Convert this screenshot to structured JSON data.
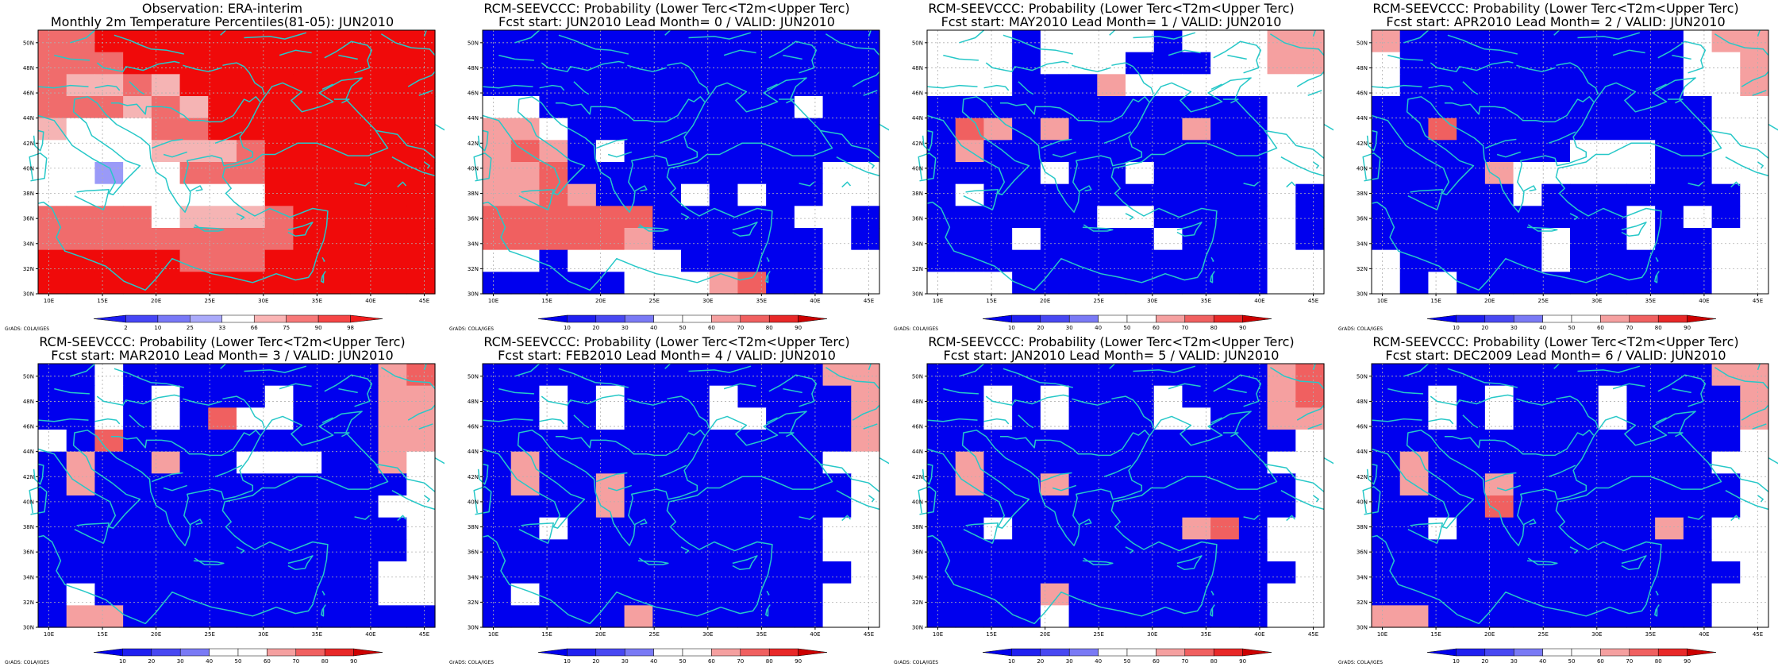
{
  "grads_credit": "GrADS: COLA/IGES",
  "map_axes": {
    "lon_min": 9,
    "lon_max": 46,
    "lat_min": 30,
    "lat_max": 51,
    "lon_ticks": [
      "10E",
      "15E",
      "20E",
      "25E",
      "30E",
      "35E",
      "40E",
      "45E"
    ],
    "lat_ticks": [
      "30N",
      "32N",
      "34N",
      "36N",
      "38N",
      "40N",
      "42N",
      "44N",
      "46N",
      "48N",
      "50N"
    ]
  },
  "colorbars": {
    "obs": {
      "labels": [
        "2",
        "10",
        "25",
        "33",
        "66",
        "75",
        "90",
        "98"
      ],
      "colors": [
        "#1c1cf0",
        "#4646f5",
        "#7878f7",
        "#aaaafa",
        "#ffffff",
        "#fab4b4",
        "#f77878",
        "#f54646",
        "#f01c1c"
      ]
    },
    "prob": {
      "labels": [
        "10",
        "20",
        "30",
        "40",
        "50",
        "60",
        "70",
        "80",
        "90"
      ],
      "colors": [
        "#0000ee",
        "#2020f0",
        "#4848f2",
        "#7a7af5",
        "#ffffff",
        "#ffffff",
        "#f5a0a0",
        "#f06060",
        "#e82828",
        "#cc0000"
      ]
    }
  },
  "panels": [
    {
      "id": "obs",
      "title_line1": "Observation: ERA-interim",
      "title_line2": "Monthly 2m Temperature Percentiles(81-05): JUN2010",
      "colorbar": "obs",
      "grid": [
        "rrRRRRRRRRRRRR",
        "rrrRRRRRRRRRRR",
        "rpprpRRRRRRRRR",
        "rrrprpRRRRRRRR",
        "pwwwrrRRRRRRRR",
        "wwwwppprRRRRRR",
        "wwbwwrrrRRRRRR",
        "wwwwwwwwRRRRRR",
        "rrrrwppprRRRRR",
        "rrrrrrrrrRRRRR",
        "RRRRRrrrRRRRRR",
        "RRRRRRRRRRRRRR"
      ]
    },
    {
      "id": "lead0",
      "title_line1": "RCM-SEEVCCC: Probability (Lower Terc<T2m<Upper Terc)",
      "title_line2": "Fcst start: JUN2010  Lead Month= 0 / VALID: JUN2010",
      "colorbar": "prob",
      "grid": [
        "BBBBBBBBBBBBBB",
        "BBBBBBBBBBBBBB",
        "BBBBBBBBBBBBBB",
        "wwBBBBBBBBBwBB",
        "ppwBBBBBBBBBBB",
        "prpBwBBBBBBBBB",
        "pprBBBBBBBBBww",
        "pprpBBBwBwBBww",
        "rrrrrrBBBBBwwB",
        "rrrrrpBBBBBBwB",
        "wwBwwwwBBBBBww",
        "BBBBBwwwprBBww"
      ]
    },
    {
      "id": "lead1",
      "title_line1": "RCM-SEEVCCC: Probability (Lower Terc<T2m<Upper Terc)",
      "title_line2": "Fcst start: MAY2010  Lead Month= 1 / VALID: JUN2010",
      "colorbar": "prob",
      "grid": [
        "wwwBwwwwBwwwpp",
        "wwwBwwwBBBwwpp",
        "wwwBBBpwwwwwww",
        "BBBBBBBBBBBBww",
        "BrpBpBBBBpBBww",
        "BpBBBBBBBBBBww",
        "BBBBwBBwBBBBww",
        "BwBBBBBBBBBBwB",
        "BBBBBBwwBBBBwB",
        "BBBwBBBBwBBBwB",
        "BBBBBBBBBBBBww",
        "wwwBBBBBBBBBww"
      ]
    },
    {
      "id": "lead2",
      "title_line1": "RCM-SEEVCCC: Probability (Lower Terc<T2m<Upper Terc)",
      "title_line2": "Fcst start: APR2010  Lead Month= 2 / VALID: JUN2010",
      "colorbar": "prob",
      "grid": [
        "pBBBBBBBBBBwpp",
        "wBBBBBBBBBBwwp",
        "wBBBBBBBBBBwwp",
        "BBBBBBBBBBBBww",
        "BBrBBBBBBBBBww",
        "BBBBBBBwwwBBww",
        "BBBBpwwwwwBBww",
        "BBBBBwBBBBBBBw",
        "BBBBBBBBBwBwBw",
        "BBBBBBwBBwBBww",
        "wBBBBBwBBBBBww",
        "wBwBBBBBBBBBww"
      ]
    },
    {
      "id": "lead3",
      "title_line1": "RCM-SEEVCCC: Probability (Lower Terc<T2m<Upper Terc)",
      "title_line2": "Fcst start: MAR2010  Lead Month= 3 / VALID: JUN2010",
      "colorbar": "prob",
      "grid": [
        "BBwBBBBBBBBBpr",
        "BBwBwBBBwBBBpp",
        "BBwBwBrwwBBBpp",
        "wBrBBBBBBBBBpp",
        "BpBBpBBwwwBBpw",
        "BpBBBBBBBBBBBw",
        "BBBBBBBBBBBBww",
        "BBBBBBBBBBBBBw",
        "BBBBBBBBBBBBBw",
        "BBBBBBBBBBBBww",
        "BwBBBBBBBBBBww",
        "BppBBBBBBBBBBB"
      ]
    },
    {
      "id": "lead4",
      "title_line1": "RCM-SEEVCCC: Probability (Lower Terc<T2m<Upper Terc)",
      "title_line2": "Fcst start: FEB2010  Lead Month= 4 / VALID: JUN2010",
      "colorbar": "prob",
      "grid": [
        "BBBBBBBBBBBBpp",
        "BBwBwBBBwBBBBp",
        "BBwBwBBBwwBBBp",
        "BBBBBBBBBBBBBp",
        "BpBBBBBBBBBBww",
        "BpBBpBBBBBBBBw",
        "BBBBpBBBBBBBBw",
        "BBwBBBBBBBBBww",
        "BBBBBBBBBBBBww",
        "BBBBBBBBBBBBBw",
        "BwBBBBBBBBBBww",
        "BBBBBpBBBBBBww"
      ]
    },
    {
      "id": "lead5",
      "title_line1": "RCM-SEEVCCC: Probability (Lower Terc<T2m<Upper Terc)",
      "title_line2": "Fcst start: JAN2010  Lead Month= 5 / VALID: JUN2010",
      "colorbar": "prob",
      "grid": [
        "BBBBBBBBBBBBpr",
        "BBwBwBBBwBBBpr",
        "BBwBwBBBwwBBpp",
        "BBBBBBBBBBBBBw",
        "BpBBBBBBBBBBww",
        "BpBBpBBBBBBBBw",
        "BBBBBBBBBBBBBw",
        "BBwBBBBBBprBww",
        "BBBBBBBBBBBBww",
        "BBBBBBBBBBBBBw",
        "BBBBpBBBBBBBww",
        "BBBBwBBBBBBBww"
      ]
    },
    {
      "id": "lead6",
      "title_line1": "RCM-SEEVCCC: Probability (Lower Terc<T2m<Upper Terc)",
      "title_line2": "Fcst start: DEC2009  Lead Month= 6 / VALID: JUN2010",
      "colorbar": "prob",
      "grid": [
        "BBBBBBBBBBBBpp",
        "BBwBwBBBwBBBBp",
        "BBwBwBBBwBBBBp",
        "BBBBBBBBBBBBBw",
        "BpBBBBBBBBBBww",
        "BpBBpBBBBBBBBw",
        "BBBBrBBBBBBBBw",
        "BBwBBBBBBBpBww",
        "BBBBBBBBBBBBww",
        "BBBBBBBBBBBBBw",
        "BBBBBBBBBBBBww",
        "ppBBBBBBBBBBww"
      ]
    }
  ]
}
